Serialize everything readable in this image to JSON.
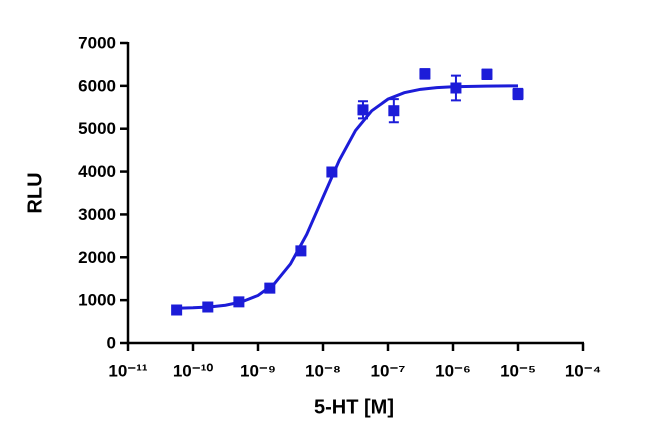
{
  "chart_data": {
    "type": "scatter",
    "xlabel": "5-HT [M]",
    "ylabel": "RLU",
    "xscale": "log",
    "xlim": [
      1e-11,
      0.0001
    ],
    "ylim": [
      0,
      7000
    ],
    "xticks": [
      {
        "value": 1e-11,
        "label": "10⁻¹¹"
      },
      {
        "value": 1e-10,
        "label": "10⁻¹⁰"
      },
      {
        "value": 1e-09,
        "label": "10⁻⁹"
      },
      {
        "value": 1e-08,
        "label": "10⁻⁸"
      },
      {
        "value": 1e-07,
        "label": "10⁻⁷"
      },
      {
        "value": 1e-06,
        "label": "10⁻⁶"
      },
      {
        "value": 1e-05,
        "label": "10⁻⁵"
      },
      {
        "value": 0.0001,
        "label": "10⁻⁴"
      }
    ],
    "yticks": [
      0,
      1000,
      2000,
      3000,
      4000,
      5000,
      6000,
      7000
    ],
    "series": [
      {
        "type": "scatter",
        "color": "#1c1cd8",
        "x": [
          5.6e-11,
          1.69e-10,
          5.08e-10,
          1.52e-09,
          4.57e-09,
          1.37e-08,
          4.12e-08,
          1.23e-07,
          3.7e-07,
          1.11e-06,
          3.33e-06,
          1e-05
        ],
        "values": [
          770,
          840,
          960,
          1280,
          2150,
          3990,
          5440,
          5420,
          6280,
          5950,
          6270,
          5810
        ],
        "errors": [
          100,
          80,
          90,
          100,
          100,
          100,
          200,
          270,
          110,
          290,
          110,
          120
        ]
      },
      {
        "type": "line",
        "color": "#1c1cd8",
        "x": [
          5.62e-11,
          1e-10,
          1.78e-10,
          3.16e-10,
          5.62e-10,
          1e-09,
          1.78e-09,
          3.16e-09,
          5.62e-09,
          1e-08,
          1.78e-08,
          3.16e-08,
          5.62e-08,
          1e-07,
          1.78e-07,
          3.16e-07,
          5.62e-07,
          1e-06,
          3.16e-06,
          1e-05
        ],
        "values": [
          810,
          821,
          841,
          881,
          960,
          1109,
          1382,
          1844,
          2536,
          3400,
          4264,
          4957,
          5418,
          5691,
          5841,
          5919,
          5959,
          5979,
          5995,
          6000
        ]
      }
    ]
  }
}
